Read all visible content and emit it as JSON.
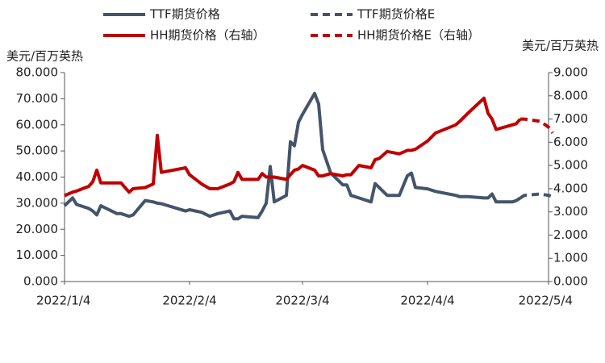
{
  "chart_data": {
    "type": "line",
    "y_label": "美元/百万英热",
    "y2_label": "美元/百万英热",
    "x": [
      "2022/1/4",
      "2022/1/6",
      "2022/1/7",
      "2022/1/10",
      "2022/1/11",
      "2022/1/12",
      "2022/1/13",
      "2022/1/17",
      "2022/1/18",
      "2022/1/20",
      "2022/1/21",
      "2022/1/24",
      "2022/1/26",
      "2022/1/27",
      "2022/1/28",
      "2022/2/3",
      "2022/2/4",
      "2022/2/7",
      "2022/2/9",
      "2022/2/11",
      "2022/2/14",
      "2022/2/15",
      "2022/2/16",
      "2022/2/17",
      "2022/2/21",
      "2022/2/22",
      "2022/2/23",
      "2022/2/24",
      "2022/2/25",
      "2022/2/28",
      "2022/3/1",
      "2022/3/2",
      "2022/3/3",
      "2022/3/4",
      "2022/3/7",
      "2022/3/8",
      "2022/3/9",
      "2022/3/11",
      "2022/3/14",
      "2022/3/15",
      "2022/3/16",
      "2022/3/18",
      "2022/3/21",
      "2022/3/22",
      "2022/3/23",
      "2022/3/25",
      "2022/3/28",
      "2022/3/30",
      "2022/3/31",
      "2022/4/1",
      "2022/4/4",
      "2022/4/6",
      "2022/4/11",
      "2022/4/12",
      "2022/4/14",
      "2022/4/18",
      "2022/4/19",
      "2022/4/20",
      "2022/4/21",
      "2022/4/25",
      "2022/4/26",
      "2022/4/27",
      "2022/4/28",
      "2022/5/2",
      "2022/5/4",
      "2022/5/5"
    ],
    "xlim": [
      "2022/1/4",
      "2022/5/5"
    ],
    "xticks": [
      "2022/1/4",
      "2022/2/4",
      "2022/3/4",
      "2022/4/4",
      "2022/5/4"
    ],
    "ylim": [
      0,
      80
    ],
    "yticks": [
      {
        "value": 0,
        "label": "0.000"
      },
      {
        "value": 10,
        "label": "10.000"
      },
      {
        "value": 20,
        "label": "20.000"
      },
      {
        "value": 30,
        "label": "30.000"
      },
      {
        "value": 40,
        "label": "40.000"
      },
      {
        "value": 50,
        "label": "50.000"
      },
      {
        "value": 60,
        "label": "60.000"
      },
      {
        "value": 70,
        "label": "70.000"
      },
      {
        "value": 80,
        "label": "80.000"
      }
    ],
    "y2lim": [
      0,
      9
    ],
    "y2ticks": [
      {
        "value": 0,
        "label": "0.000"
      },
      {
        "value": 1,
        "label": "1.000"
      },
      {
        "value": 2,
        "label": "2.000"
      },
      {
        "value": 3,
        "label": "3.000"
      },
      {
        "value": 4,
        "label": "4.000"
      },
      {
        "value": 5,
        "label": "5.000"
      },
      {
        "value": 6,
        "label": "6.000"
      },
      {
        "value": 7,
        "label": "7.000"
      },
      {
        "value": 8,
        "label": "8.000"
      },
      {
        "value": 9,
        "label": "9.000"
      }
    ],
    "series": [
      {
        "name": "TTF期货价格",
        "color": "#44546a",
        "dashed": false,
        "values": [
          29,
          32,
          29.5,
          28,
          27,
          25.5,
          29,
          26,
          26,
          25,
          25.5,
          31,
          30.5,
          30,
          29.8,
          27,
          27.5,
          26.5,
          25,
          26,
          27,
          24,
          24,
          25,
          24.5,
          27,
          30,
          44,
          30.5,
          33,
          53.5,
          52,
          61,
          64,
          72,
          68,
          50.5,
          41.5,
          37,
          37,
          33,
          32,
          30.5,
          37.5,
          36,
          33,
          33,
          40.5,
          41.5,
          36,
          35.5,
          34.5,
          33,
          32.5,
          32.5,
          32,
          32,
          33.5,
          30.5,
          30.5,
          31,
          32,
          null,
          null,
          null,
          null
        ]
      },
      {
        "name": "TTF期货价格E",
        "color": "#44546a",
        "dashed": true,
        "values": [
          null,
          null,
          null,
          null,
          null,
          null,
          null,
          null,
          null,
          null,
          null,
          null,
          null,
          null,
          null,
          null,
          null,
          null,
          null,
          null,
          null,
          null,
          null,
          null,
          null,
          null,
          null,
          null,
          null,
          null,
          null,
          null,
          null,
          null,
          null,
          null,
          null,
          null,
          null,
          null,
          null,
          null,
          null,
          null,
          null,
          null,
          null,
          null,
          null,
          null,
          null,
          null,
          null,
          null,
          null,
          null,
          null,
          null,
          null,
          null,
          null,
          32,
          33,
          33.5,
          33,
          32.5
        ]
      },
      {
        "name": "HH期货价格（右轴）",
        "color": "#c00000",
        "dashed": false,
        "axis": "y2",
        "values": [
          3.7,
          3.85,
          3.9,
          4.1,
          4.3,
          4.8,
          4.25,
          4.25,
          4.25,
          3.85,
          4.0,
          4.05,
          4.2,
          6.3,
          4.7,
          4.9,
          4.6,
          4.2,
          4.0,
          4.0,
          4.2,
          4.3,
          4.7,
          4.4,
          4.4,
          4.65,
          4.5,
          4.5,
          4.5,
          4.4,
          4.6,
          4.8,
          4.85,
          5.0,
          4.8,
          4.55,
          4.55,
          4.65,
          4.55,
          4.6,
          4.6,
          5.0,
          4.9,
          5.25,
          5.3,
          5.6,
          5.5,
          5.65,
          5.65,
          5.7,
          6.05,
          6.4,
          6.75,
          6.9,
          7.25,
          7.9,
          7.25,
          7.0,
          6.55,
          6.75,
          6.8,
          7.0,
          null,
          null,
          null,
          null
        ]
      },
      {
        "name": "HH期货价格E（右轴）",
        "color": "#c00000",
        "dashed": true,
        "axis": "y2",
        "values": [
          null,
          null,
          null,
          null,
          null,
          null,
          null,
          null,
          null,
          null,
          null,
          null,
          null,
          null,
          null,
          null,
          null,
          null,
          null,
          null,
          null,
          null,
          null,
          null,
          null,
          null,
          null,
          null,
          null,
          null,
          null,
          null,
          null,
          null,
          null,
          null,
          null,
          null,
          null,
          null,
          null,
          null,
          null,
          null,
          null,
          null,
          null,
          null,
          null,
          null,
          null,
          null,
          null,
          null,
          null,
          null,
          null,
          null,
          null,
          null,
          null,
          7.0,
          7.0,
          6.9,
          6.65,
          6.4
        ]
      }
    ]
  }
}
